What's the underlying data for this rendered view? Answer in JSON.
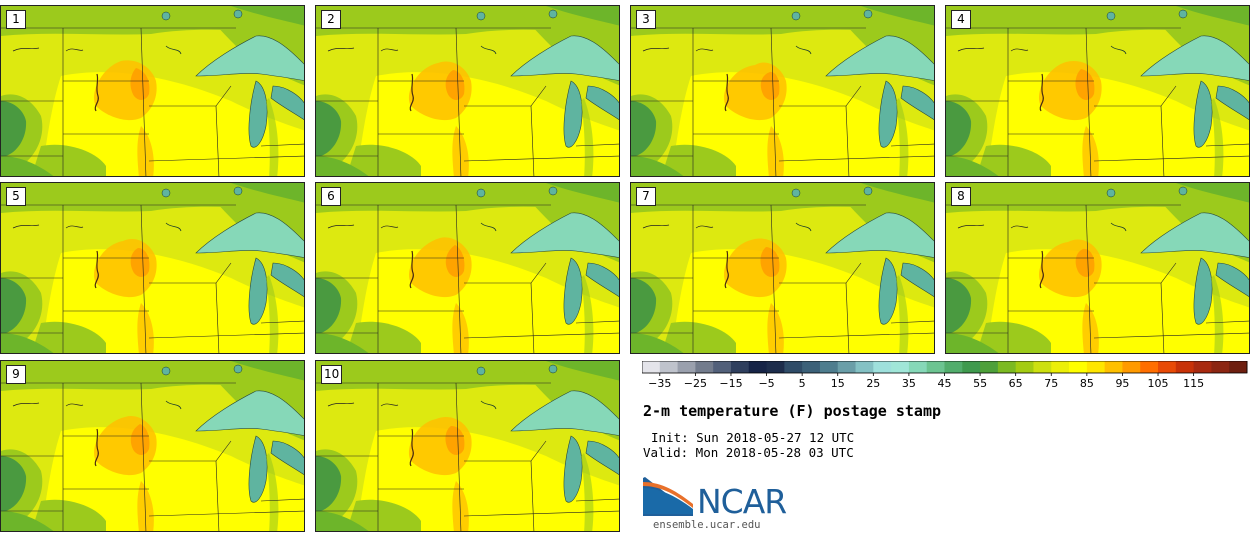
{
  "panels": [
    {
      "label": "1"
    },
    {
      "label": "2"
    },
    {
      "label": "3"
    },
    {
      "label": "4"
    },
    {
      "label": "5"
    },
    {
      "label": "6"
    },
    {
      "label": "7"
    },
    {
      "label": "8"
    },
    {
      "label": "9"
    },
    {
      "label": "10"
    }
  ],
  "colorbar": {
    "colors": [
      "#e4e4ea",
      "#bfc3cc",
      "#9aa0ad",
      "#737c8d",
      "#52607a",
      "#2f3f5e",
      "#162447",
      "#1d2d4c",
      "#2f4c68",
      "#3c6179",
      "#4e7d8e",
      "#6a9ea8",
      "#84c1c4",
      "#9ee0dc",
      "#a0e6d8",
      "#86d8b8",
      "#6cc491",
      "#52ad6c",
      "#3f9a4e",
      "#4ea03a",
      "#7cba22",
      "#a4cc12",
      "#cde010",
      "#ecef08",
      "#ffff00",
      "#ffe600",
      "#ffc000",
      "#ff9a00",
      "#ff6e00",
      "#e84a06",
      "#c83208",
      "#a82a10",
      "#8c2612",
      "#6e1f10"
    ],
    "tick_labels": [
      "−35",
      "−25",
      "−15",
      "−5",
      "5",
      "15",
      "25",
      "35",
      "45",
      "55",
      "65",
      "75",
      "85",
      "95",
      "105",
      "115"
    ]
  },
  "title": "2-m temperature (F) postage stamp",
  "init": "Init: Sun 2018-05-27 12 UTC",
  "valid": "Valid: Mon 2018-05-28 03 UTC",
  "logo_text": "NCAR",
  "url": "ensemble.ucar.edu",
  "map_colors": {
    "land_warm": "#ffff00",
    "land_mid": "#dde910",
    "land_cool": "#9cca1c",
    "land_cold": "#6db52a",
    "mountain": "#4a9a40",
    "hot": "#ffc000",
    "hotter": "#ff9a00",
    "lake": "#86d8b8",
    "lake_deep": "#5fb4a0"
  }
}
